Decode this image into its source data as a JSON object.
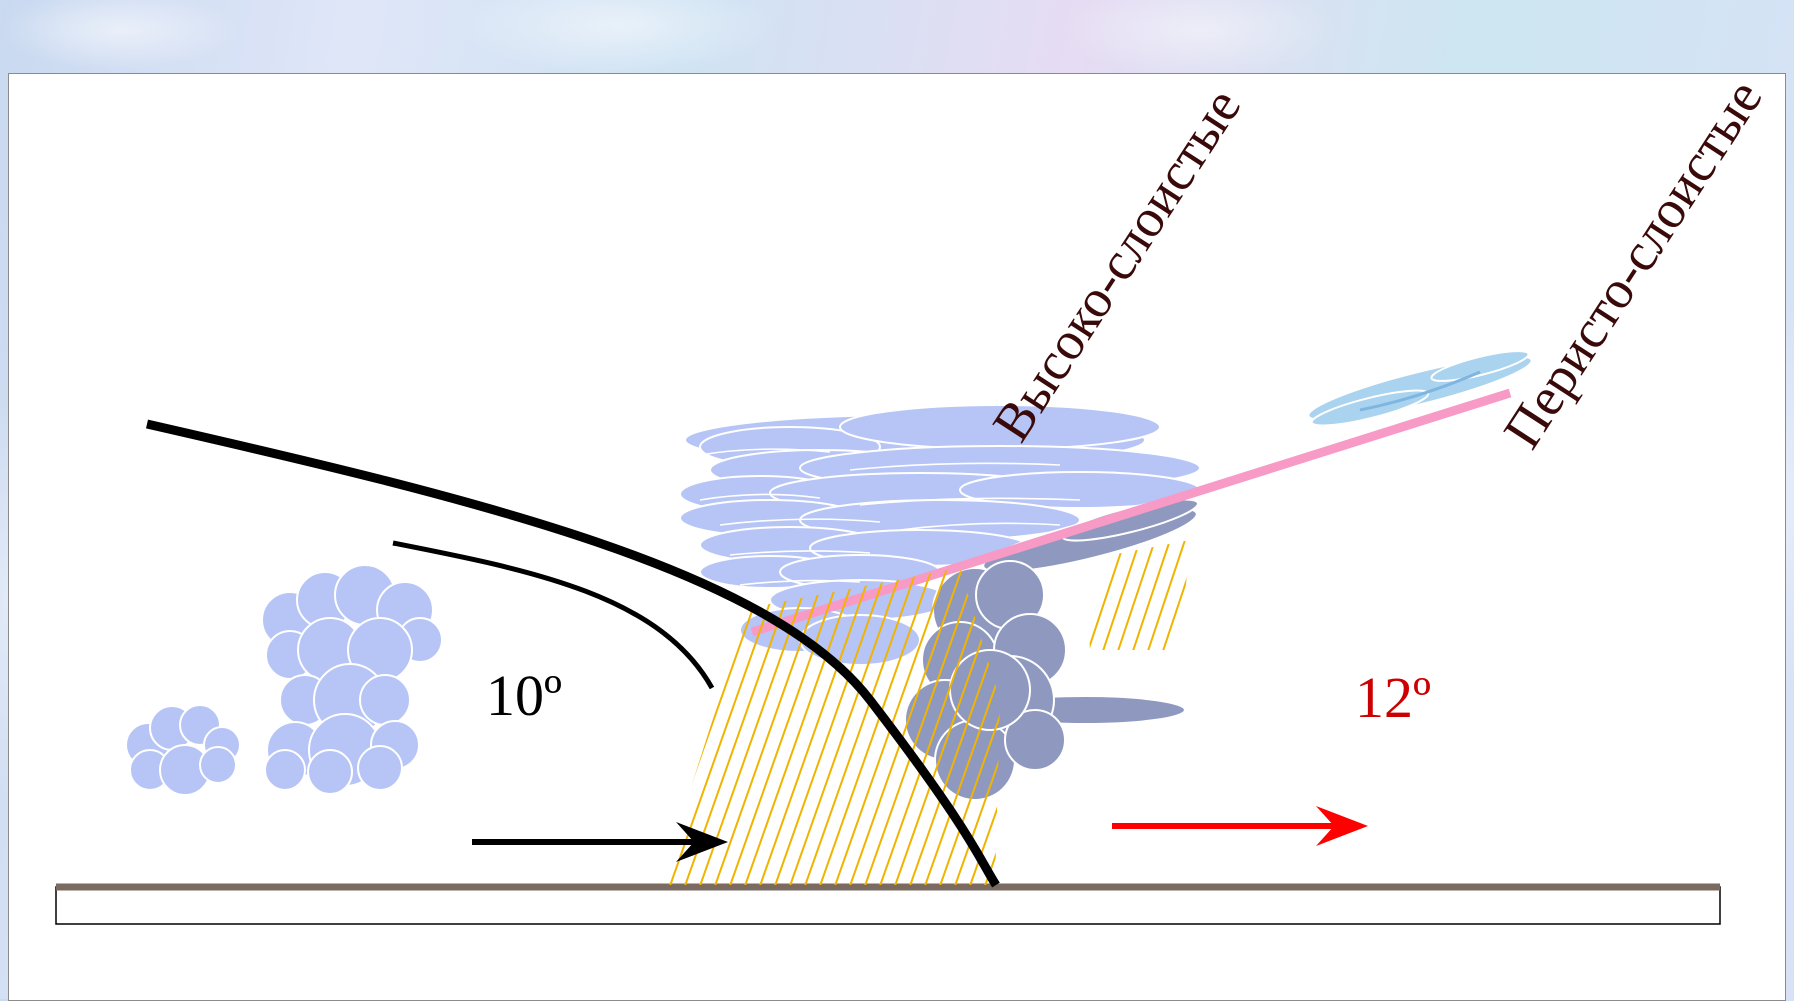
{
  "labels": {
    "altostratus": "Высоко-слоистые",
    "cirrostratus": "Перисто-слоистые",
    "angle_cold": "10º",
    "angle_warm": "12º"
  },
  "colors": {
    "cold_front_line": "#000000",
    "warm_arrow": "#ff0000",
    "warm_angle_text": "#cc0000",
    "label_text": "#3a0a0a",
    "frontal_surface": "#f79ac6",
    "cloud_light": "#b7c5f6",
    "cloud_dark": "#8f99bf",
    "cirrus": "#a9d3ef",
    "rain": "#f0b400",
    "ground": "#7a6a60"
  },
  "icons": [
    "cumulus-cloud",
    "cumulonimbus-cloud",
    "rain-hatching",
    "wind-arrow"
  ]
}
